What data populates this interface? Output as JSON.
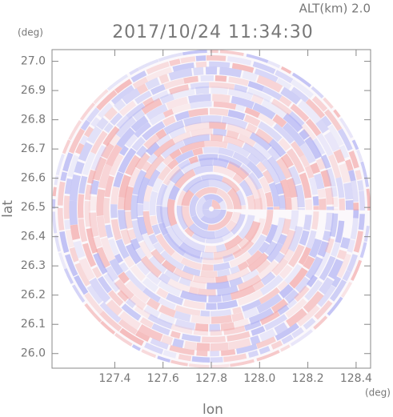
{
  "chart_data": {
    "type": "heatmap",
    "title": "2017/10/24 11:34:30",
    "annotation": "ALT(km) 2.0",
    "x_label": "lon",
    "y_label": "lat",
    "x_unit": "(deg)",
    "y_unit": "(deg)",
    "xlim": [
      127.14,
      128.46
    ],
    "ylim": [
      25.95,
      27.04
    ],
    "xticks": [
      127.4,
      127.6,
      127.8,
      {
        "value": 128.0,
        "label": "128.0"
      },
      128.2,
      128.4
    ],
    "yticks": [
      {
        "value": 26.0,
        "label": "26.0"
      },
      26.1,
      26.2,
      26.3,
      26.4,
      26.5,
      26.6,
      26.7,
      26.8,
      26.9,
      {
        "value": 27.0,
        "label": "27.0"
      }
    ],
    "colors": [
      "#f3a9a9",
      "#aeb0f3"
    ]
  }
}
